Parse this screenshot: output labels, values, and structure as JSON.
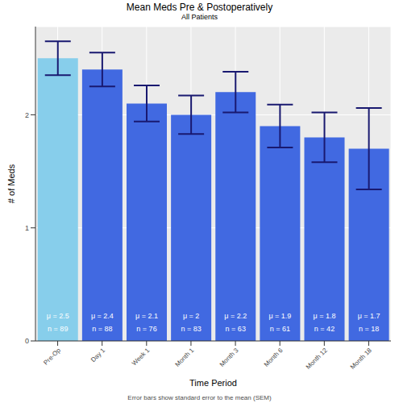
{
  "chart_data": {
    "type": "bar",
    "title": "Mean Meds Pre & Postoperatively",
    "subtitle": "All Patients",
    "x_label": "Time Period",
    "y_label": "# of Meds",
    "caption": "Error bars show standard error to the mean (SEM)",
    "categories": [
      "Pre-Op",
      "Day 1",
      "Week 1",
      "Month 1",
      "Month 3",
      "Month 6",
      "Month 12",
      "Month 18"
    ],
    "values": [
      2.5,
      2.4,
      2.1,
      2,
      2.2,
      1.9,
      1.8,
      1.7
    ],
    "value_labels": [
      "μ = 2.5",
      "μ = 2.4",
      "μ = 2.1",
      "μ = 2",
      "μ = 2.2",
      "μ = 1.9",
      "μ = 1.8",
      "μ = 1.7"
    ],
    "n_labels": [
      "n = 89",
      "n = 88",
      "n = 76",
      "n = 83",
      "n = 63",
      "n = 61",
      "n = 42",
      "n = 18"
    ],
    "errors": [
      0.15,
      0.15,
      0.16,
      0.17,
      0.18,
      0.19,
      0.22,
      0.36
    ],
    "colors": [
      "#87CEEB",
      "#4169E1",
      "#4169E1",
      "#4169E1",
      "#4169E1",
      "#4169E1",
      "#4169E1",
      "#4169E1"
    ],
    "ylim": [
      0,
      2.78
    ],
    "yticks": [
      0,
      1,
      2
    ],
    "grid": true,
    "data_labels": true
  }
}
